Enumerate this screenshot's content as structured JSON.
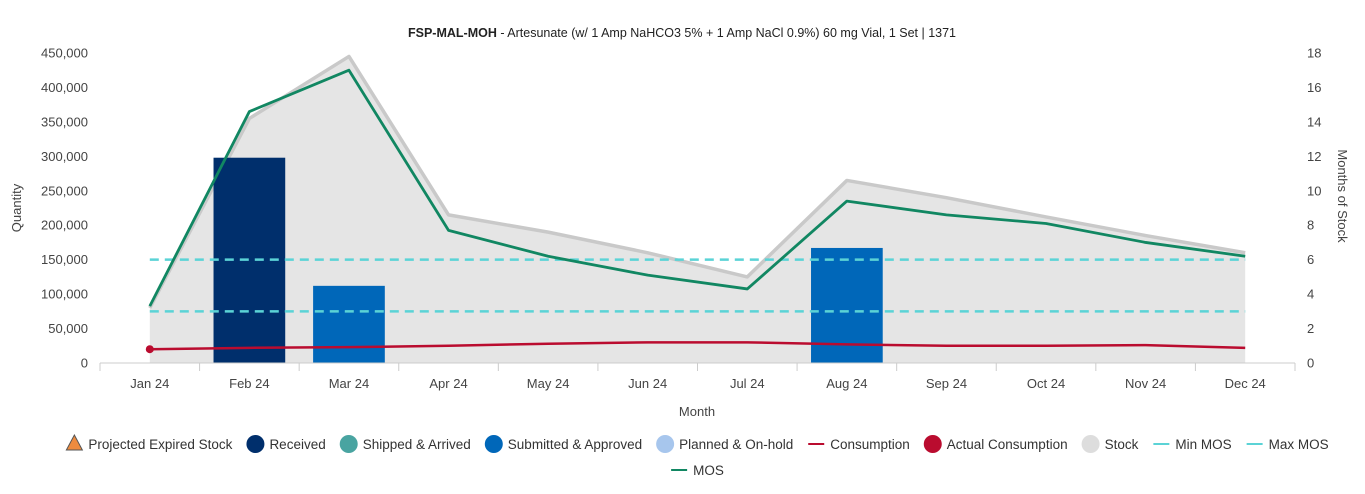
{
  "chart_data": {
    "type": "bar",
    "title_code": "FSP-MAL-MOH",
    "title_rest": " - Artesunate (w/ 1 Amp NaHCO3 5% + 1 Amp NaCl 0.9%) 60 mg Vial, 1 Set | 1371",
    "xlabel": "Month",
    "ylabel": "Quantity",
    "y2label": "Months of Stock",
    "categories": [
      "Jan 24",
      "Feb 24",
      "Mar 24",
      "Apr 24",
      "May 24",
      "Jun 24",
      "Jul 24",
      "Aug 24",
      "Sep 24",
      "Oct 24",
      "Nov 24",
      "Dec 24"
    ],
    "ylim": [
      0,
      450000
    ],
    "y_ticks": [
      "0",
      "50,000",
      "100,000",
      "150,000",
      "200,000",
      "250,000",
      "300,000",
      "350,000",
      "400,000",
      "450,000"
    ],
    "y2lim": [
      0,
      18
    ],
    "y2_ticks": [
      "0",
      "2",
      "4",
      "6",
      "8",
      "10",
      "12",
      "14",
      "16",
      "18"
    ],
    "series": {
      "stock": [
        80000,
        355000,
        445000,
        215000,
        190000,
        160000,
        125000,
        265000,
        240000,
        212000,
        185000,
        160000
      ],
      "received": [
        0,
        298000,
        0,
        0,
        0,
        0,
        0,
        0,
        0,
        0,
        0,
        0
      ],
      "submitted_approved": [
        0,
        0,
        112000,
        0,
        0,
        0,
        0,
        167000,
        0,
        0,
        0,
        0
      ],
      "consumption": [
        20000,
        22000,
        23000,
        25000,
        28000,
        30000,
        30000,
        27000,
        25000,
        25000,
        26000,
        22000
      ],
      "actual_consumption": [
        20000,
        null,
        null,
        null,
        null,
        null,
        null,
        null,
        null,
        null,
        null,
        null
      ],
      "mos": [
        3.3,
        14.6,
        17.0,
        7.7,
        6.2,
        5.1,
        4.3,
        9.4,
        8.6,
        8.1,
        7.0,
        6.2
      ],
      "min_mos": 3,
      "max_mos": 6
    },
    "colors": {
      "stock_fill": "#e5e5e5",
      "stock_line": "#c9c9c9",
      "received": "#002f6c",
      "submitted_approved": "#0067b9",
      "shipped_arrived": "#49a4a1",
      "planned_onhold": "#a7c6ed",
      "projected_expired": "#ed8b3f",
      "consumption": "#ba0c2f",
      "mos": "#118762",
      "min_max_mos": "#5bd3d6"
    },
    "legend": [
      {
        "key": "projected-expired-stock",
        "label": "Projected Expired Stock",
        "shape": "triangle",
        "color": "#ed8b3f"
      },
      {
        "key": "received",
        "label": "Received",
        "shape": "circle",
        "color": "#002f6c"
      },
      {
        "key": "shipped-arrived",
        "label": "Shipped & Arrived",
        "shape": "circle",
        "color": "#49a4a1"
      },
      {
        "key": "submitted-approved",
        "label": "Submitted & Approved",
        "shape": "circle",
        "color": "#0067b9"
      },
      {
        "key": "planned-onhold",
        "label": "Planned & On-hold",
        "shape": "circle",
        "color": "#a7c6ed"
      },
      {
        "key": "consumption",
        "label": "Consumption",
        "shape": "line",
        "color": "#ba0c2f"
      },
      {
        "key": "actual-consumption",
        "label": "Actual Consumption",
        "shape": "circle",
        "color": "#ba0c2f"
      },
      {
        "key": "stock",
        "label": "Stock",
        "shape": "circle",
        "color": "#dddddd"
      },
      {
        "key": "min-mos",
        "label": "Min MOS",
        "shape": "line",
        "color": "#5bd3d6"
      },
      {
        "key": "max-mos",
        "label": "Max MOS",
        "shape": "line",
        "color": "#5bd3d6"
      },
      {
        "key": "mos",
        "label": "MOS",
        "shape": "line",
        "color": "#118762"
      }
    ]
  }
}
